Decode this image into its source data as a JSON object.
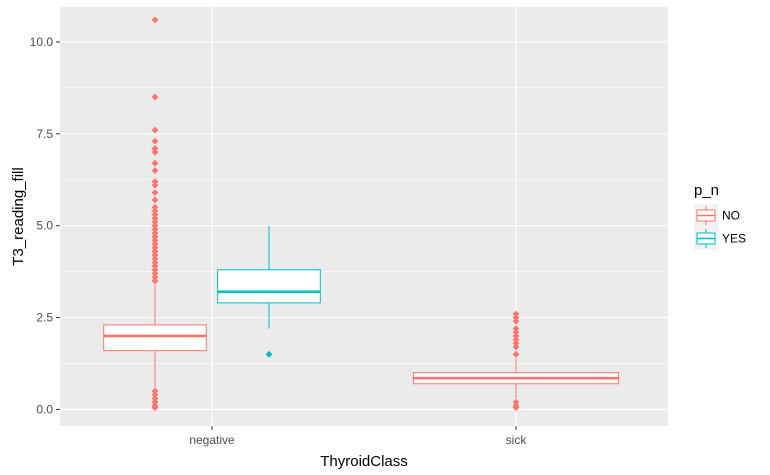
{
  "chart_data": {
    "type": "boxplot",
    "xlabel": "ThyroidClass",
    "ylabel": "T3_reading_fill",
    "categories": [
      "negative",
      "sick"
    ],
    "ylim": [
      -0.45,
      10.95
    ],
    "yticks": [
      0.0,
      2.5,
      5.0,
      7.5,
      10.0
    ],
    "ytick_labels": [
      "0.0",
      "2.5",
      "5.0",
      "7.5",
      "10.0"
    ],
    "grid": true,
    "legend": {
      "title": "p_n",
      "placement": "right",
      "entries": [
        "NO",
        "YES"
      ]
    },
    "colors": {
      "NO": "#F8766D",
      "YES": "#00BFC4",
      "panel": "#EBEBEB",
      "grid": "#FFFFFF"
    },
    "series": [
      {
        "name": "NO",
        "boxes": [
          {
            "category": "negative",
            "whisker_low": 0.6,
            "q1": 1.6,
            "median": 2.0,
            "q3": 2.3,
            "whisker_high": 3.4,
            "outliers": [
              0.05,
              0.1,
              0.2,
              0.3,
              0.4,
              0.5,
              3.5,
              3.6,
              3.7,
              3.8,
              3.9,
              4.0,
              4.1,
              4.2,
              4.3,
              4.4,
              4.5,
              4.6,
              4.7,
              4.8,
              4.9,
              5.0,
              5.1,
              5.2,
              5.3,
              5.4,
              5.5,
              5.7,
              5.9,
              6.1,
              6.2,
              6.5,
              6.7,
              7.0,
              7.1,
              7.3,
              7.6,
              8.5,
              10.6
            ]
          },
          {
            "category": "sick",
            "whisker_low": 0.3,
            "q1": 0.7,
            "median": 0.85,
            "q3": 1.0,
            "whisker_high": 1.4,
            "outliers": [
              0.05,
              0.1,
              0.2,
              1.5,
              1.7,
              1.8,
              1.9,
              2.0,
              2.1,
              2.2,
              2.4,
              2.5,
              2.6
            ]
          }
        ]
      },
      {
        "name": "YES",
        "boxes": [
          {
            "category": "negative",
            "whisker_low": 2.2,
            "q1": 2.9,
            "median": 3.2,
            "q3": 3.8,
            "whisker_high": 5.0,
            "outliers": [
              1.5
            ]
          }
        ]
      }
    ]
  }
}
